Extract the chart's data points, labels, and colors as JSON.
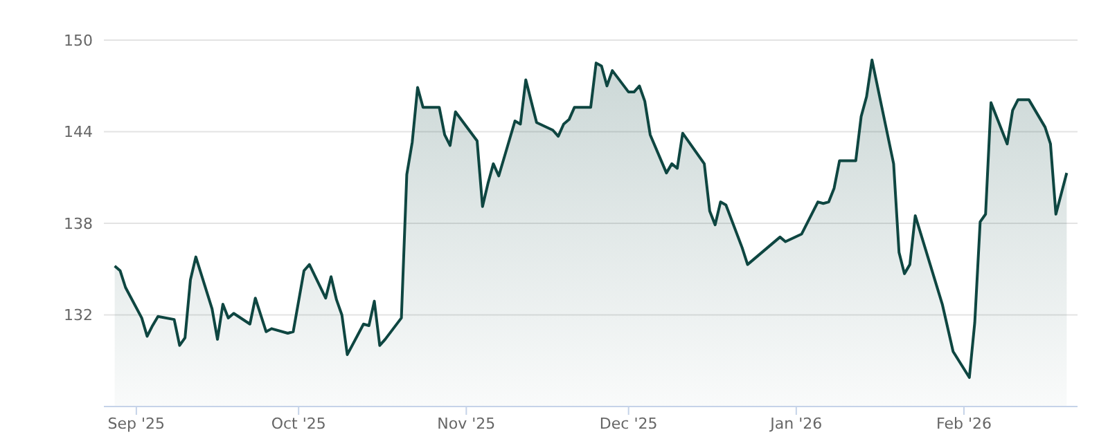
{
  "chart_data": {
    "type": "area",
    "xlim": [
      "2025-08-26",
      "2026-02-22"
    ],
    "xticks": [
      {
        "value": "2025-09-01",
        "label": "Sep '25"
      },
      {
        "value": "2025-10-01",
        "label": "Oct '25"
      },
      {
        "value": "2025-11-01",
        "label": "Nov '25"
      },
      {
        "value": "2025-12-01",
        "label": "Dec '25"
      },
      {
        "value": "2026-01-01",
        "label": "Jan '26"
      },
      {
        "value": "2026-02-01",
        "label": "Feb '26"
      }
    ],
    "ylim": [
      126,
      150
    ],
    "yticks": [
      132,
      138,
      144,
      150
    ],
    "grid": "y",
    "legend": false,
    "x": [
      "2025-08-28",
      "2025-08-29",
      "2025-08-30",
      "2025-09-02",
      "2025-09-03",
      "2025-09-04",
      "2025-09-05",
      "2025-09-08",
      "2025-09-09",
      "2025-09-10",
      "2025-09-11",
      "2025-09-12",
      "2025-09-15",
      "2025-09-16",
      "2025-09-17",
      "2025-09-18",
      "2025-09-19",
      "2025-09-22",
      "2025-09-23",
      "2025-09-25",
      "2025-09-26",
      "2025-09-29",
      "2025-09-30",
      "2025-10-02",
      "2025-10-03",
      "2025-10-06",
      "2025-10-07",
      "2025-10-08",
      "2025-10-09",
      "2025-10-10",
      "2025-10-13",
      "2025-10-14",
      "2025-10-15",
      "2025-10-16",
      "2025-10-17",
      "2025-10-20",
      "2025-10-21",
      "2025-10-22",
      "2025-10-23",
      "2025-10-24",
      "2025-10-27",
      "2025-10-28",
      "2025-10-29",
      "2025-10-30",
      "2025-11-03",
      "2025-11-04",
      "2025-11-05",
      "2025-11-06",
      "2025-11-07",
      "2025-11-10",
      "2025-11-11",
      "2025-11-12",
      "2025-11-14",
      "2025-11-17",
      "2025-11-18",
      "2025-11-19",
      "2025-11-20",
      "2025-11-21",
      "2025-11-24",
      "2025-11-25",
      "2025-11-26",
      "2025-11-27",
      "2025-11-28",
      "2025-12-01",
      "2025-12-02",
      "2025-12-03",
      "2025-12-04",
      "2025-12-05",
      "2025-12-08",
      "2025-12-09",
      "2025-12-10",
      "2025-12-11",
      "2025-12-15",
      "2025-12-16",
      "2025-12-17",
      "2025-12-18",
      "2025-12-19",
      "2025-12-22",
      "2025-12-23",
      "2025-12-29",
      "2025-12-30",
      "2026-01-02",
      "2026-01-05",
      "2026-01-06",
      "2026-01-07",
      "2026-01-08",
      "2026-01-09",
      "2026-01-12",
      "2026-01-13",
      "2026-01-14",
      "2026-01-15",
      "2026-01-19",
      "2026-01-20",
      "2026-01-21",
      "2026-01-22",
      "2026-01-23",
      "2026-01-28",
      "2026-01-30",
      "2026-02-02",
      "2026-02-03",
      "2026-02-04",
      "2026-02-05",
      "2026-02-06",
      "2026-02-09",
      "2026-02-10",
      "2026-02-11",
      "2026-02-13",
      "2026-02-16",
      "2026-02-17",
      "2026-02-18",
      "2026-02-20"
    ],
    "series": [
      {
        "color": "#0e4641",
        "values": [
          135.2,
          134.9,
          133.8,
          131.8,
          130.6,
          131.3,
          131.9,
          131.7,
          130.0,
          130.5,
          134.3,
          135.8,
          132.4,
          130.4,
          132.7,
          131.8,
          132.1,
          131.4,
          133.1,
          130.9,
          131.1,
          130.8,
          130.9,
          134.9,
          135.3,
          133.1,
          134.5,
          133.0,
          132.0,
          129.4,
          131.4,
          131.3,
          132.9,
          130.0,
          130.4,
          131.8,
          141.2,
          143.3,
          146.9,
          145.6,
          145.6,
          143.8,
          143.1,
          145.3,
          143.4,
          139.1,
          140.6,
          141.9,
          141.1,
          144.7,
          144.5,
          147.4,
          144.6,
          144.1,
          143.7,
          144.5,
          144.8,
          145.6,
          145.6,
          148.5,
          148.3,
          147.0,
          148.0,
          146.6,
          146.6,
          147.0,
          146.0,
          143.8,
          141.3,
          141.9,
          141.6,
          143.9,
          141.9,
          138.8,
          137.9,
          139.4,
          139.2,
          136.4,
          135.3,
          137.1,
          136.8,
          137.3,
          139.4,
          139.3,
          139.4,
          140.3,
          142.1,
          142.1,
          145.0,
          146.3,
          148.7,
          141.9,
          136.1,
          134.7,
          135.3,
          138.5,
          132.7,
          129.6,
          127.9,
          131.5,
          138.1,
          138.6,
          145.9,
          143.2,
          145.4,
          146.1,
          146.1,
          144.3,
          143.2,
          138.6,
          141.3
        ]
      }
    ]
  }
}
